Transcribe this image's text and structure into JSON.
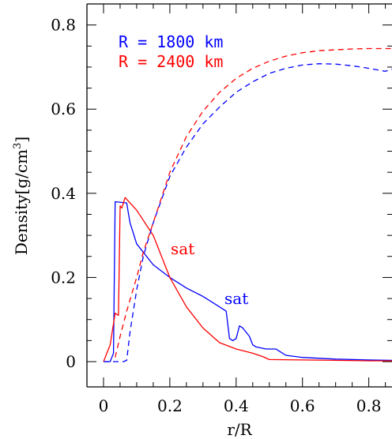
{
  "chart_data": {
    "type": "line",
    "xlabel": "r/R",
    "ylabel": "Density",
    "ylabel_unit": "[g/cm",
    "ylabel_sup": "3",
    "ylabel_close": "]",
    "xlim": [
      -0.05,
      0.87
    ],
    "ylim": [
      -0.06,
      0.85
    ],
    "x_ticks": [
      0,
      0.2,
      0.4,
      0.6,
      0.8
    ],
    "x_tick_labels": [
      "0",
      "0.2",
      "0.4",
      "0.6",
      "0.8"
    ],
    "y_ticks": [
      0,
      0.2,
      0.4,
      0.6,
      0.8
    ],
    "y_tick_labels": [
      "0",
      "0.2",
      "0.4",
      "0.6",
      "0.8"
    ],
    "legend": [
      {
        "label": "R = 1800 km",
        "color": "#0000ff"
      },
      {
        "label": "R = 2400 km",
        "color": "#ff0000"
      }
    ],
    "annotations": [
      {
        "text": "sat",
        "x": 0.22,
        "y": 0.33,
        "color": "#ff0000"
      },
      {
        "text": "sat",
        "x": 0.42,
        "y": 0.15,
        "color": "#0000ff"
      }
    ],
    "series": [
      {
        "color": "#0000ff",
        "style": "solid",
        "x": [
          0.0,
          0.02,
          0.03,
          0.035,
          0.06,
          0.07,
          0.08,
          0.1,
          0.15,
          0.2,
          0.25,
          0.3,
          0.35,
          0.37,
          0.38,
          0.39,
          0.4,
          0.41,
          0.42,
          0.44,
          0.45,
          0.46,
          0.49,
          0.52,
          0.53,
          0.55,
          0.6,
          0.7,
          0.8,
          0.87
        ],
        "y": [
          0.0,
          0.0,
          0.02,
          0.38,
          0.378,
          0.377,
          0.33,
          0.28,
          0.23,
          0.2,
          0.175,
          0.155,
          0.13,
          0.12,
          0.055,
          0.05,
          0.055,
          0.085,
          0.08,
          0.06,
          0.04,
          0.035,
          0.03,
          0.03,
          0.025,
          0.015,
          0.01,
          0.006,
          0.004,
          0.003
        ]
      },
      {
        "color": "#ff0000",
        "style": "solid",
        "x": [
          0.0,
          0.02,
          0.035,
          0.045,
          0.05,
          0.055,
          0.065,
          0.1,
          0.15,
          0.2,
          0.25,
          0.3,
          0.35,
          0.4,
          0.45,
          0.48,
          0.5,
          0.6,
          0.7,
          0.8,
          0.87
        ],
        "y": [
          0.0,
          0.04,
          0.115,
          0.11,
          0.37,
          0.365,
          0.39,
          0.36,
          0.3,
          0.2,
          0.13,
          0.08,
          0.045,
          0.03,
          0.02,
          0.012,
          0.005,
          0.004,
          0.003,
          0.002,
          0.002
        ]
      },
      {
        "color": "#0000ff",
        "style": "dashed",
        "x": [
          0.0,
          0.02,
          0.04,
          0.06,
          0.07,
          0.08,
          0.1,
          0.12,
          0.15,
          0.2,
          0.25,
          0.3,
          0.35,
          0.4,
          0.45,
          0.5,
          0.55,
          0.6,
          0.65,
          0.7,
          0.75,
          0.8,
          0.85,
          0.87
        ],
        "y": [
          0.0,
          0.0,
          0.0,
          0.0,
          0.003,
          0.07,
          0.17,
          0.25,
          0.33,
          0.44,
          0.51,
          0.565,
          0.605,
          0.64,
          0.665,
          0.685,
          0.697,
          0.705,
          0.708,
          0.707,
          0.703,
          0.697,
          0.69,
          0.695
        ]
      },
      {
        "color": "#ff0000",
        "style": "dashed",
        "x": [
          0.035,
          0.05,
          0.07,
          0.1,
          0.12,
          0.15,
          0.2,
          0.25,
          0.3,
          0.35,
          0.4,
          0.45,
          0.5,
          0.55,
          0.6,
          0.65,
          0.7,
          0.75,
          0.8,
          0.87
        ],
        "y": [
          0.01,
          0.06,
          0.12,
          0.2,
          0.26,
          0.33,
          0.45,
          0.535,
          0.595,
          0.64,
          0.673,
          0.697,
          0.714,
          0.726,
          0.734,
          0.739,
          0.741,
          0.743,
          0.744,
          0.744
        ]
      }
    ]
  }
}
